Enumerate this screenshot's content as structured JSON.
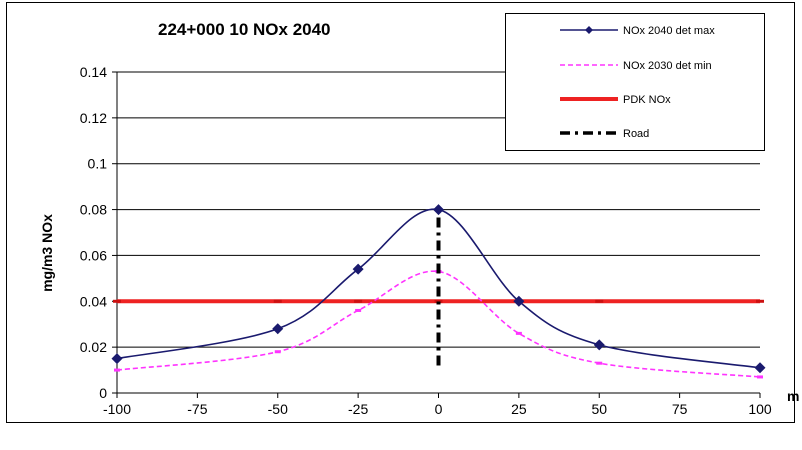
{
  "chart_data": {
    "type": "line",
    "title": "224+000 10 NOx 2040",
    "xlabel": "m",
    "ylabel": "mg/m3 NOx",
    "xlim": [
      -100,
      100
    ],
    "ylim": [
      0,
      0.14
    ],
    "xticks": [
      "-100",
      "-75",
      "-50",
      "-25",
      "0",
      "25",
      "50",
      "75",
      "100"
    ],
    "yticks": [
      "0",
      "0.02",
      "0.04",
      "0.06",
      "0.08",
      "0.1",
      "0.12",
      "0.14"
    ],
    "grid": "horizontal",
    "legend_position": "top-right",
    "series": [
      {
        "name": "NOx 2040 det max",
        "color": "#1a1a6e",
        "style": "solid-diamond",
        "x": [
          -100,
          -50,
          -25,
          0,
          25,
          50,
          100
        ],
        "y": [
          0.015,
          0.028,
          0.054,
          0.08,
          0.04,
          0.021,
          0.011
        ]
      },
      {
        "name": "NOx 2030 det min",
        "color": "#ff33ff",
        "style": "dashed",
        "x": [
          -100,
          -50,
          -25,
          0,
          25,
          50,
          100
        ],
        "y": [
          0.01,
          0.018,
          0.036,
          0.053,
          0.026,
          0.013,
          0.007
        ]
      },
      {
        "name": "PDK NOx",
        "color": "#ee2222",
        "style": "thick-solid",
        "x": [
          -100,
          -50,
          -25,
          0,
          25,
          50,
          100
        ],
        "y": [
          0.04,
          0.04,
          0.04,
          0.04,
          0.04,
          0.04,
          0.04
        ]
      },
      {
        "name": "Road",
        "color": "#000000",
        "style": "dash-dot",
        "x": [
          0,
          0
        ],
        "y": [
          0.012,
          0.08
        ]
      }
    ]
  }
}
